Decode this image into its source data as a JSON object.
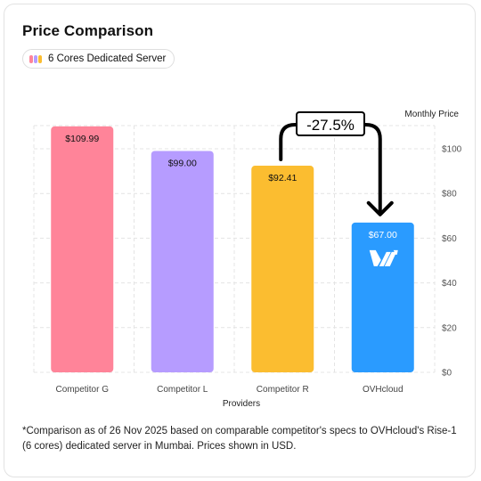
{
  "title": "Price Comparison",
  "pill": {
    "label": "6 Cores Dedicated Server",
    "swatch_colors": [
      "#ff8499",
      "#b69cff",
      "#fbbd30"
    ]
  },
  "chart_data": {
    "type": "bar",
    "categories": [
      "Competitor G",
      "Competitor L",
      "Competitor R",
      "OVHcloud"
    ],
    "values": [
      109.99,
      99.0,
      92.41,
      67.0
    ],
    "value_labels": [
      "$109.99",
      "$99.00",
      "$92.41",
      "$67.00"
    ],
    "colors": [
      "#ff8499",
      "#b69cff",
      "#fbbd30",
      "#2a9bff"
    ],
    "xlabel": "Providers",
    "ylabel": "Monthly Price",
    "ylim": [
      0,
      110
    ],
    "yticks": [
      0,
      20,
      40,
      60,
      80,
      100
    ],
    "ytick_labels": [
      "$0",
      "$20",
      "$40",
      "$60",
      "$80",
      "$100"
    ],
    "y_axis_position": "right",
    "grid": true,
    "annotation": {
      "text": "-27.5%",
      "from": "Competitor R",
      "to": "OVHcloud"
    },
    "logo": "ovhcloud-logo",
    "logo_on": "OVHcloud"
  },
  "footnote": "*Comparison as of 26 Nov 2025 based on comparable competitor's specs to OVHcloud's Rise-1 (6 cores) dedicated server in Mumbai. Prices shown in USD."
}
